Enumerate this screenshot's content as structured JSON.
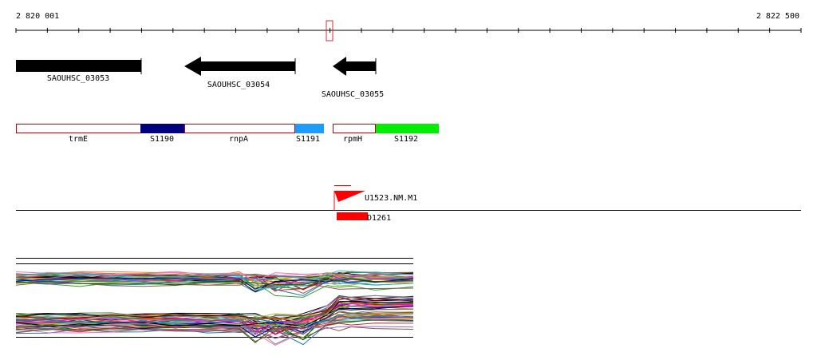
{
  "axis": {
    "start_label": "2 820 001",
    "end_label": "2 822 500"
  },
  "genes": [
    {
      "id": "SAOUHSC_03053"
    },
    {
      "id": "SAOUHSC_03054"
    },
    {
      "id": "SAOUHSC_03055"
    }
  ],
  "features": [
    {
      "label": "trmE"
    },
    {
      "label": "S1190"
    },
    {
      "label": "rnpA"
    },
    {
      "label": "S1191"
    },
    {
      "label": "rpmH"
    },
    {
      "label": "S1192"
    }
  ],
  "elements": [
    {
      "label": "U1523.NM.M1"
    },
    {
      "label": "D1261"
    }
  ],
  "colors": {
    "gene": "#000000",
    "feature_outline": "#cc0000",
    "s1190": "#000080",
    "s1191": "#1e9bff",
    "s1192": "#00ee00",
    "element": "#ff0000",
    "cursor_box": "#cc3333"
  }
}
